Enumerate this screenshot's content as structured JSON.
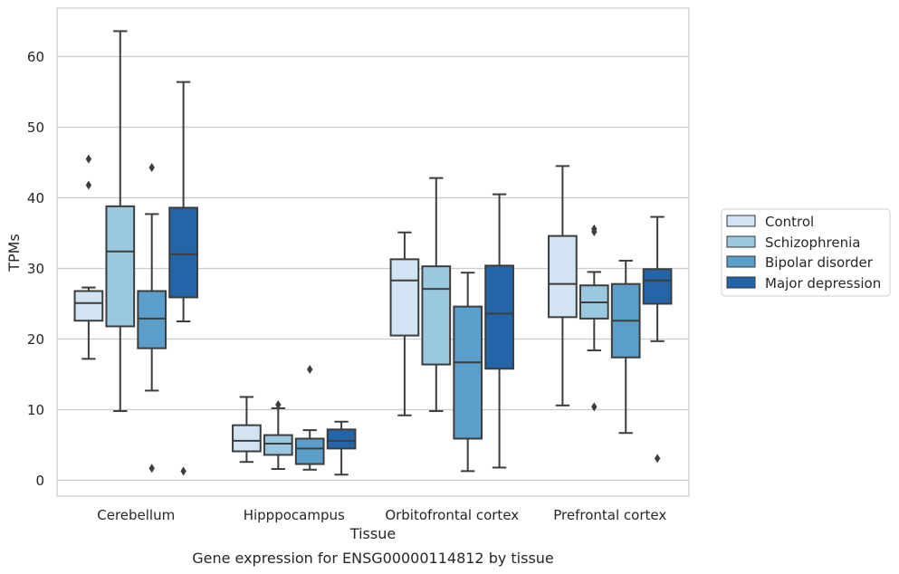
{
  "chart_data": {
    "type": "box",
    "caption": "Gene expression for ENSG00000114812 by tissue",
    "xlabel": "Tissue",
    "ylabel": "TPMs",
    "ylim": [
      -2,
      67
    ],
    "yticks": [
      0,
      10,
      20,
      30,
      40,
      50,
      60
    ],
    "grid": "horizontal",
    "legend_position": "right",
    "categories": [
      "Cerebellum",
      "Hipppocampus",
      "Orbitofrontal cortex",
      "Prefrontal cortex"
    ],
    "series": [
      {
        "name": "Control",
        "color": "#d2e3f3",
        "boxes": [
          {
            "whislo": 17.2,
            "q1": 22.6,
            "med": 25.1,
            "q3": 26.8,
            "whishi": 27.3,
            "fliers": [
              41.8,
              45.5
            ]
          },
          {
            "whislo": 2.6,
            "q1": 4.1,
            "med": 5.6,
            "q3": 7.8,
            "whishi": 11.8,
            "fliers": []
          },
          {
            "whislo": 9.2,
            "q1": 20.5,
            "med": 28.3,
            "q3": 31.3,
            "whishi": 35.1,
            "fliers": []
          },
          {
            "whislo": 10.6,
            "q1": 23.1,
            "med": 27.8,
            "q3": 34.6,
            "whishi": 44.5,
            "fliers": []
          }
        ]
      },
      {
        "name": "Schizophrenia",
        "color": "#9ac8e0",
        "boxes": [
          {
            "whislo": 9.8,
            "q1": 21.8,
            "med": 32.4,
            "q3": 38.8,
            "whishi": 63.6,
            "fliers": []
          },
          {
            "whislo": 1.6,
            "q1": 3.6,
            "med": 5.2,
            "q3": 6.4,
            "whishi": 10.2,
            "fliers": [
              10.7
            ]
          },
          {
            "whislo": 9.8,
            "q1": 16.4,
            "med": 27.1,
            "q3": 30.3,
            "whishi": 42.8,
            "fliers": []
          },
          {
            "whislo": 18.4,
            "q1": 22.9,
            "med": 25.2,
            "q3": 27.6,
            "whishi": 29.5,
            "fliers": [
              35.2,
              35.6,
              10.4
            ]
          }
        ]
      },
      {
        "name": "Bipolar disorder",
        "color": "#5a9ec9",
        "boxes": [
          {
            "whislo": 12.7,
            "q1": 18.7,
            "med": 22.9,
            "q3": 26.8,
            "whishi": 37.7,
            "fliers": [
              44.3,
              1.7
            ]
          },
          {
            "whislo": 1.5,
            "q1": 2.3,
            "med": 4.5,
            "q3": 5.9,
            "whishi": 7.1,
            "fliers": [
              15.7
            ]
          },
          {
            "whislo": 1.3,
            "q1": 5.9,
            "med": 16.7,
            "q3": 24.6,
            "whishi": 29.4,
            "fliers": []
          },
          {
            "whislo": 6.7,
            "q1": 17.4,
            "med": 22.6,
            "q3": 27.8,
            "whishi": 31.1,
            "fliers": []
          }
        ]
      },
      {
        "name": "Major depression",
        "color": "#2465a8",
        "boxes": [
          {
            "whislo": 22.5,
            "q1": 25.9,
            "med": 32.0,
            "q3": 38.6,
            "whishi": 56.4,
            "fliers": [
              1.3
            ]
          },
          {
            "whislo": 0.8,
            "q1": 4.5,
            "med": 5.6,
            "q3": 7.2,
            "whishi": 8.3,
            "fliers": []
          },
          {
            "whislo": 1.8,
            "q1": 15.8,
            "med": 23.6,
            "q3": 30.4,
            "whishi": 40.5,
            "fliers": []
          },
          {
            "whislo": 19.7,
            "q1": 25.0,
            "med": 28.3,
            "q3": 29.9,
            "whishi": 37.3,
            "fliers": [
              3.1
            ]
          }
        ]
      }
    ]
  }
}
